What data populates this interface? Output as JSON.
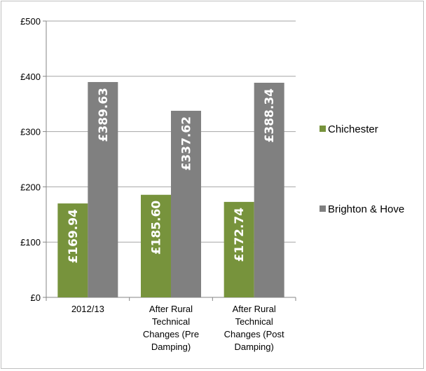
{
  "chart_data": {
    "type": "bar",
    "categories": [
      [
        "2012/13"
      ],
      [
        "After Rural",
        "Technical",
        "Changes (Pre",
        "Damping)"
      ],
      [
        "After Rural",
        "Technical",
        "Changes (Post",
        "Damping)"
      ]
    ],
    "series": [
      {
        "name": "Chichester",
        "color": "#77933c",
        "values": [
          169.94,
          185.6,
          172.74
        ],
        "labels": [
          "£169.94",
          "£185.60",
          "£172.74"
        ]
      },
      {
        "name": "Brighton & Hove",
        "color": "#808080",
        "values": [
          389.63,
          337.62,
          388.34
        ],
        "labels": [
          "£389.63",
          "£337.62",
          "£388.34"
        ]
      }
    ],
    "ylim": [
      0,
      500
    ],
    "yticks": [
      0,
      100,
      200,
      300,
      400,
      500
    ],
    "ytick_labels": [
      "£0",
      "£100",
      "£200",
      "£300",
      "£400",
      "£500"
    ],
    "grid": true,
    "legend": "right",
    "title": "",
    "xlabel": "",
    "ylabel": ""
  }
}
